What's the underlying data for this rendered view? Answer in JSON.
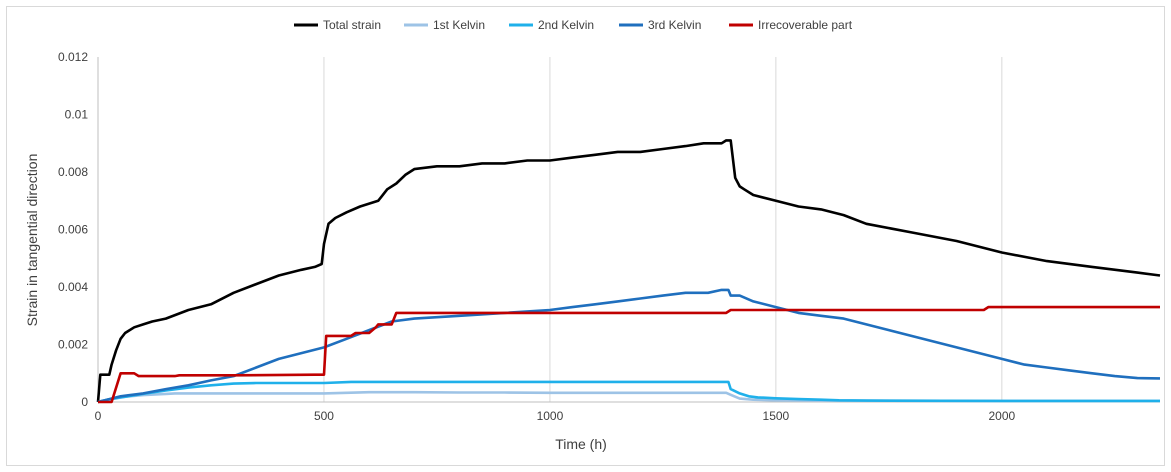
{
  "chart_data": {
    "type": "line",
    "title": "",
    "xlabel": "Time (h)",
    "ylabel": "Strain in tangential direction",
    "xlim": [
      0,
      2350
    ],
    "ylim": [
      0,
      0.012
    ],
    "xticks": [
      0,
      500,
      1000,
      1500,
      2000
    ],
    "yticks": [
      0,
      0.002,
      0.004,
      0.006,
      0.008,
      0.01,
      0.012
    ],
    "xtick_labels": [
      "0",
      "500",
      "1000",
      "1500",
      "2000"
    ],
    "ytick_labels": [
      "0",
      "0.002",
      "0.004",
      "0.006",
      "0.008",
      "0.01",
      "0.012"
    ],
    "grid": "vertical",
    "legend_position": "top",
    "series": [
      {
        "name": "Total strain",
        "color": "#000000",
        "x": [
          0,
          5,
          25,
          30,
          40,
          50,
          60,
          80,
          100,
          120,
          150,
          200,
          250,
          300,
          350,
          400,
          450,
          480,
          495,
          500,
          510,
          525,
          550,
          580,
          620,
          640,
          660,
          680,
          700,
          750,
          800,
          850,
          900,
          950,
          1000,
          1050,
          1100,
          1150,
          1200,
          1250,
          1300,
          1340,
          1350,
          1380,
          1390,
          1395,
          1400,
          1410,
          1420,
          1430,
          1450,
          1500,
          1550,
          1600,
          1650,
          1700,
          1800,
          1900,
          2000,
          2100,
          2200,
          2300,
          2350
        ],
        "values": [
          0,
          0.00095,
          0.00095,
          0.0013,
          0.0018,
          0.0022,
          0.0024,
          0.0026,
          0.0027,
          0.0028,
          0.0029,
          0.0032,
          0.0034,
          0.0038,
          0.0041,
          0.0044,
          0.0046,
          0.0047,
          0.0048,
          0.0055,
          0.0062,
          0.0064,
          0.0066,
          0.0068,
          0.007,
          0.0074,
          0.0076,
          0.0079,
          0.0081,
          0.0082,
          0.0082,
          0.0083,
          0.0083,
          0.0084,
          0.0084,
          0.0085,
          0.0086,
          0.0087,
          0.0087,
          0.0088,
          0.0089,
          0.009,
          0.009,
          0.009,
          0.0091,
          0.0091,
          0.0091,
          0.0078,
          0.0075,
          0.0074,
          0.0072,
          0.007,
          0.0068,
          0.0067,
          0.0065,
          0.0062,
          0.0059,
          0.0056,
          0.0052,
          0.0049,
          0.0047,
          0.0045,
          0.0044
        ]
      },
      {
        "name": "1st Kelvin",
        "color": "#9dc3e6",
        "x": [
          0,
          10,
          30,
          60,
          100,
          150,
          170,
          200,
          300,
          400,
          500,
          550,
          600,
          700,
          800,
          900,
          1000,
          1100,
          1200,
          1300,
          1390,
          1400,
          1420,
          1450,
          1500,
          1600,
          2000,
          2350
        ],
        "values": [
          0,
          5e-05,
          0.0001,
          0.00018,
          0.00024,
          0.00028,
          0.0003,
          0.0003,
          0.0003,
          0.0003,
          0.0003,
          0.00032,
          0.00034,
          0.00034,
          0.00033,
          0.00033,
          0.00032,
          0.00032,
          0.00032,
          0.00032,
          0.00032,
          0.00025,
          0.00012,
          8e-05,
          6e-05,
          5e-05,
          4e-05,
          4e-05
        ]
      },
      {
        "name": "2nd Kelvin",
        "color": "#1fb0ea",
        "x": [
          0,
          20,
          50,
          100,
          150,
          200,
          250,
          300,
          350,
          400,
          450,
          500,
          560,
          600,
          700,
          800,
          900,
          1000,
          1100,
          1200,
          1300,
          1395,
          1400,
          1420,
          1440,
          1460,
          1500,
          1550,
          1600,
          1640,
          1700,
          2000,
          2350
        ],
        "values": [
          0,
          8e-05,
          0.00016,
          0.00028,
          0.0004,
          0.0005,
          0.00058,
          0.00064,
          0.00066,
          0.00066,
          0.00066,
          0.00066,
          0.0007,
          0.0007,
          0.0007,
          0.0007,
          0.0007,
          0.0007,
          0.0007,
          0.0007,
          0.0007,
          0.0007,
          0.00045,
          0.0003,
          0.0002,
          0.00016,
          0.00013,
          0.0001,
          8e-05,
          6e-05,
          5e-05,
          4e-05,
          4e-05
        ]
      },
      {
        "name": "3rd Kelvin",
        "color": "#1f6fbe",
        "x": [
          0,
          50,
          100,
          150,
          200,
          250,
          300,
          350,
          400,
          450,
          500,
          550,
          600,
          650,
          700,
          800,
          900,
          1000,
          1050,
          1100,
          1150,
          1200,
          1250,
          1300,
          1350,
          1380,
          1395,
          1400,
          1420,
          1450,
          1500,
          1550,
          1600,
          1650,
          1700,
          1750,
          1800,
          1850,
          1900,
          1950,
          2000,
          2050,
          2100,
          2150,
          2200,
          2250,
          2300,
          2350
        ],
        "values": [
          0,
          0.0002,
          0.0003,
          0.00045,
          0.00058,
          0.00075,
          0.0009,
          0.0012,
          0.0015,
          0.0017,
          0.0019,
          0.0022,
          0.0025,
          0.0028,
          0.0029,
          0.003,
          0.0031,
          0.0032,
          0.0033,
          0.0034,
          0.0035,
          0.0036,
          0.0037,
          0.0038,
          0.0038,
          0.0039,
          0.0039,
          0.0037,
          0.0037,
          0.0035,
          0.0033,
          0.0031,
          0.003,
          0.0029,
          0.0027,
          0.0025,
          0.0023,
          0.0021,
          0.0019,
          0.0017,
          0.0015,
          0.0013,
          0.0012,
          0.0011,
          0.001,
          0.0009,
          0.00083,
          0.00082
        ]
      },
      {
        "name": "Irrecoverable part",
        "color": "#c00000",
        "x": [
          0,
          30,
          50,
          80,
          90,
          100,
          170,
          180,
          300,
          480,
          500,
          505,
          560,
          570,
          600,
          615,
          620,
          650,
          660,
          700,
          1000,
          1390,
          1400,
          1500,
          1960,
          1970,
          2350
        ],
        "values": [
          0,
          0,
          0.001,
          0.001,
          0.0009,
          0.0009,
          0.0009,
          0.00093,
          0.00093,
          0.00095,
          0.00095,
          0.0023,
          0.0023,
          0.0024,
          0.0024,
          0.0026,
          0.0027,
          0.0027,
          0.0031,
          0.0031,
          0.0031,
          0.0031,
          0.0032,
          0.0032,
          0.0032,
          0.0033,
          0.0033
        ]
      }
    ]
  }
}
